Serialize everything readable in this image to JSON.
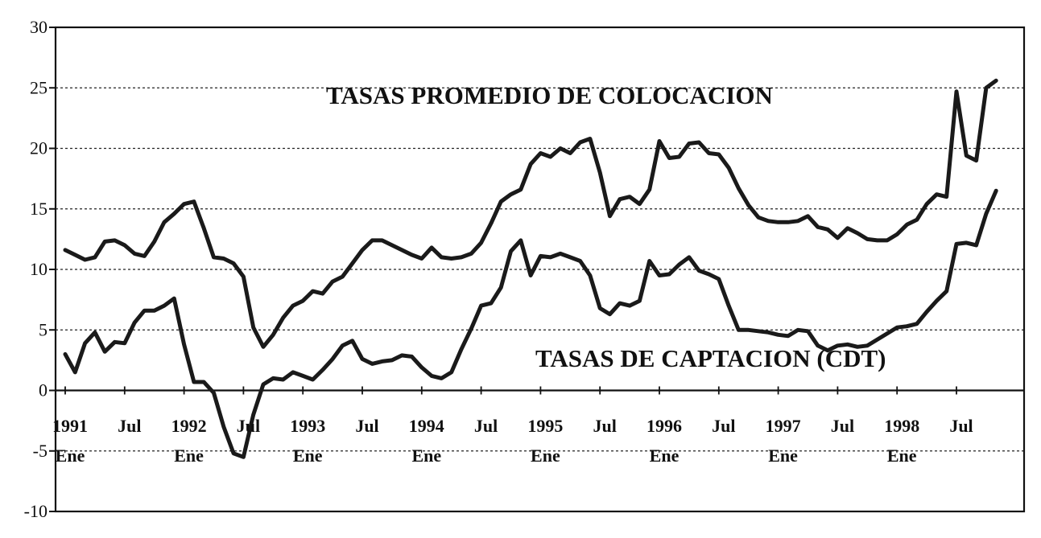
{
  "chart_data": {
    "type": "line",
    "title": "",
    "xlabel": "",
    "ylabel": "",
    "ylim": [
      -10,
      30
    ],
    "yticks": [
      30,
      25,
      20,
      15,
      10,
      5,
      0,
      -5,
      -10
    ],
    "grid": "horizontal dashed",
    "x_period": "monthly, 1991 Ene - 1998 Nov",
    "x_tick_labels": [
      {
        "year": "1991",
        "month": "Ene"
      },
      {
        "year": "",
        "month": "Jul"
      },
      {
        "year": "1992",
        "month": "Ene"
      },
      {
        "year": "",
        "month": "Jul"
      },
      {
        "year": "1993",
        "month": "Ene"
      },
      {
        "year": "",
        "month": "Jul"
      },
      {
        "year": "1994",
        "month": "Ene"
      },
      {
        "year": "",
        "month": "Jul"
      },
      {
        "year": "1995",
        "month": "Ene"
      },
      {
        "year": "",
        "month": "Jul"
      },
      {
        "year": "1996",
        "month": "Ene"
      },
      {
        "year": "",
        "month": "Jul"
      },
      {
        "year": "1997",
        "month": "Ene"
      },
      {
        "year": "",
        "month": "Jul"
      },
      {
        "year": "1998",
        "month": "Ene"
      },
      {
        "year": "",
        "month": "Jul"
      }
    ],
    "annotations": [
      "TASAS PROMEDIO DE COLOCACION",
      "TASAS DE CAPTACION (CDT)"
    ],
    "series": [
      {
        "name": "TASAS PROMEDIO DE COLOCACION",
        "values": [
          11.6,
          11.2,
          10.8,
          11.0,
          12.3,
          12.4,
          12.0,
          11.3,
          11.1,
          12.3,
          13.9,
          14.6,
          15.4,
          15.6,
          13.4,
          11.0,
          10.9,
          10.5,
          9.4,
          5.2,
          3.6,
          4.6,
          6.0,
          7.0,
          7.4,
          8.2,
          8.0,
          9.0,
          9.4,
          10.5,
          11.6,
          12.4,
          12.4,
          12.0,
          11.6,
          11.2,
          10.9,
          11.8,
          11.0,
          10.9,
          11.0,
          11.3,
          12.2,
          13.8,
          15.6,
          16.2,
          16.6,
          18.7,
          19.6,
          19.3,
          20.0,
          19.6,
          20.5,
          20.8,
          18.0,
          14.4,
          15.8,
          16.0,
          15.4,
          16.6,
          20.6,
          19.2,
          19.3,
          20.4,
          20.5,
          19.6,
          19.5,
          18.4,
          16.7,
          15.3,
          14.3,
          14.0,
          13.9,
          13.9,
          14.0,
          14.4,
          13.5,
          13.3,
          12.6,
          13.4,
          13.0,
          12.5,
          12.4,
          12.4,
          12.9,
          13.7,
          14.1,
          15.4,
          16.2,
          16.0,
          24.7,
          19.4,
          19.0,
          25.0,
          25.6
        ]
      },
      {
        "name": "TASAS DE CAPTACION (CDT)",
        "values": [
          3.0,
          1.5,
          3.9,
          4.8,
          3.2,
          4.0,
          3.9,
          5.6,
          6.6,
          6.6,
          7.0,
          7.6,
          3.8,
          0.7,
          0.7,
          -0.2,
          -3.0,
          -5.2,
          -5.5,
          -2.0,
          0.5,
          1.0,
          0.9,
          1.5,
          1.2,
          0.9,
          1.7,
          2.6,
          3.7,
          4.1,
          2.6,
          2.2,
          2.4,
          2.5,
          2.9,
          2.8,
          1.9,
          1.2,
          1.0,
          1.5,
          3.4,
          5.1,
          7.0,
          7.2,
          8.5,
          11.5,
          12.4,
          9.5,
          11.1,
          11.0,
          11.3,
          11.0,
          10.7,
          9.5,
          6.8,
          6.3,
          7.2,
          7.0,
          7.4,
          10.7,
          9.5,
          9.6,
          10.4,
          11.0,
          9.9,
          9.6,
          9.2,
          7.0,
          5.0,
          5.0,
          4.9,
          4.8,
          4.6,
          4.5,
          5.0,
          4.9,
          3.7,
          3.3,
          3.7,
          3.8,
          3.6,
          3.7,
          4.2,
          4.7,
          5.2,
          5.3,
          5.5,
          6.5,
          7.4,
          8.2,
          12.1,
          12.2,
          12.0,
          14.6,
          16.5
        ]
      }
    ]
  }
}
